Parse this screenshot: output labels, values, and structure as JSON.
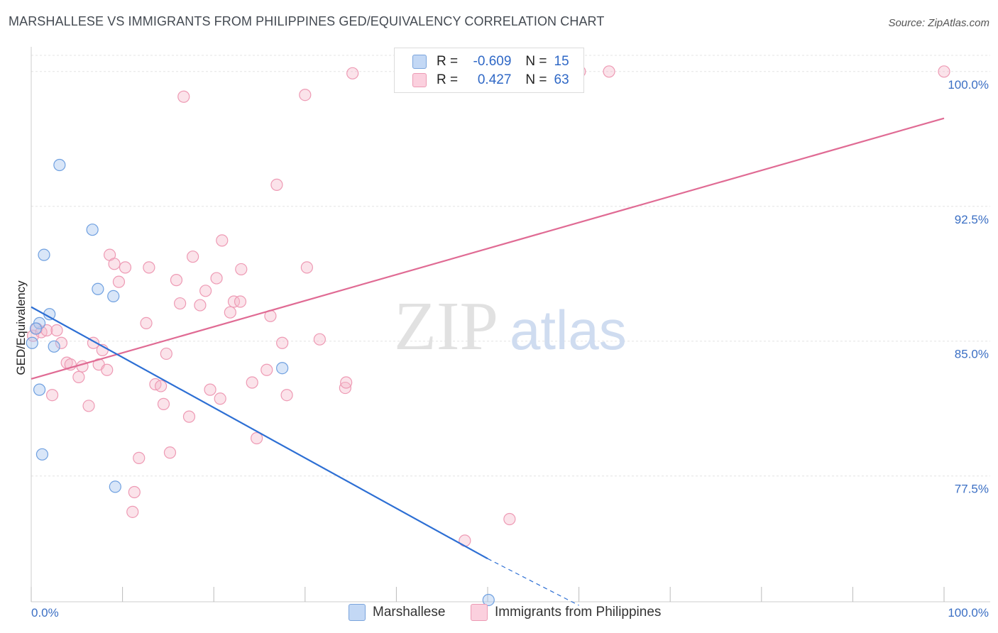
{
  "title": "MARSHALLESE VS IMMIGRANTS FROM PHILIPPINES GED/EQUIVALENCY CORRELATION CHART",
  "source": "Source: ZipAtlas.com",
  "watermark": {
    "zip": "ZIP",
    "atlas": "atlas"
  },
  "legend": {
    "r_label": "R =",
    "n_label": "N =",
    "rows": [
      {
        "r": "-0.609",
        "n": "15",
        "color": "#aac8f0"
      },
      {
        "r": "0.427",
        "n": "63",
        "color": "#f6b9cb"
      }
    ]
  },
  "bottom_legend": [
    "Marshallese",
    "Immigrants from Philippines"
  ],
  "chart_data": {
    "type": "scatter",
    "ylabel": "GED/Equivalency",
    "xlim": [
      0,
      100
    ],
    "ylim": [
      70.5,
      100.9
    ],
    "x_tick_labels": [
      "0.0%",
      "100.0%"
    ],
    "y_ticks": [
      77.5,
      85.0,
      92.5,
      100.0
    ],
    "y_tick_labels": [
      "77.5%",
      "85.0%",
      "92.5%",
      "100.0%"
    ],
    "grid": true,
    "colors": {
      "marshallese": "#6fa0e0",
      "philippines": "#ee9ab4",
      "marshallese_line": "#2d6fd4",
      "philippines_line": "#e06b94"
    },
    "series": [
      {
        "name": "Marshallese",
        "points": [
          [
            0.1,
            84.9
          ],
          [
            0.9,
            86.0
          ],
          [
            0.9,
            82.3
          ],
          [
            1.2,
            78.7
          ],
          [
            1.4,
            89.8
          ],
          [
            2.0,
            86.5
          ],
          [
            2.5,
            84.7
          ],
          [
            3.1,
            94.8
          ],
          [
            6.7,
            91.2
          ],
          [
            7.3,
            87.9
          ],
          [
            9.0,
            87.5
          ],
          [
            9.2,
            76.9
          ],
          [
            27.5,
            83.5
          ],
          [
            50.1,
            70.6
          ],
          [
            0.5,
            85.7
          ]
        ],
        "trend": {
          "x1": 0,
          "y1": 86.9,
          "x2": 50,
          "y2": 72.9,
          "dash_to_x": 60,
          "dash_to_y": 70.3
        }
      },
      {
        "name": "Immigrants from Philippines",
        "points": [
          [
            0.2,
            85.3
          ],
          [
            0.6,
            85.7
          ],
          [
            1.1,
            85.5
          ],
          [
            1.7,
            85.6
          ],
          [
            2.3,
            82.0
          ],
          [
            2.8,
            85.6
          ],
          [
            3.3,
            84.9
          ],
          [
            3.9,
            83.8
          ],
          [
            4.3,
            83.7
          ],
          [
            5.2,
            83.0
          ],
          [
            5.6,
            83.6
          ],
          [
            6.3,
            81.4
          ],
          [
            6.8,
            84.9
          ],
          [
            7.4,
            83.7
          ],
          [
            7.8,
            84.5
          ],
          [
            8.3,
            83.4
          ],
          [
            8.6,
            89.8
          ],
          [
            9.1,
            89.3
          ],
          [
            9.6,
            88.3
          ],
          [
            10.3,
            89.1
          ],
          [
            11.3,
            76.6
          ],
          [
            11.1,
            75.5
          ],
          [
            11.8,
            78.5
          ],
          [
            12.6,
            86.0
          ],
          [
            12.9,
            89.1
          ],
          [
            13.6,
            82.6
          ],
          [
            14.2,
            82.5
          ],
          [
            14.5,
            81.5
          ],
          [
            14.8,
            84.3
          ],
          [
            15.2,
            78.8
          ],
          [
            15.9,
            88.4
          ],
          [
            16.3,
            87.1
          ],
          [
            16.7,
            98.6
          ],
          [
            17.3,
            80.8
          ],
          [
            17.7,
            89.7
          ],
          [
            18.5,
            87.0
          ],
          [
            19.1,
            87.8
          ],
          [
            19.6,
            82.3
          ],
          [
            20.3,
            88.5
          ],
          [
            20.7,
            81.8
          ],
          [
            20.9,
            90.6
          ],
          [
            21.8,
            86.6
          ],
          [
            22.2,
            87.2
          ],
          [
            23.0,
            89.0
          ],
          [
            22.9,
            87.2
          ],
          [
            24.2,
            82.7
          ],
          [
            24.7,
            79.6
          ],
          [
            25.8,
            83.4
          ],
          [
            26.2,
            86.4
          ],
          [
            26.9,
            93.7
          ],
          [
            27.5,
            84.9
          ],
          [
            28.0,
            82.0
          ],
          [
            30.0,
            98.7
          ],
          [
            30.2,
            89.1
          ],
          [
            31.6,
            85.1
          ],
          [
            34.4,
            82.4
          ],
          [
            34.5,
            82.7
          ],
          [
            35.2,
            99.9
          ],
          [
            47.5,
            73.9
          ],
          [
            52.4,
            75.1
          ],
          [
            60.1,
            100.0
          ],
          [
            63.3,
            100.0
          ],
          [
            100.0,
            100.0
          ]
        ],
        "trend": {
          "x1": 0,
          "y1": 82.9,
          "x2": 100,
          "y2": 97.4
        }
      }
    ]
  }
}
